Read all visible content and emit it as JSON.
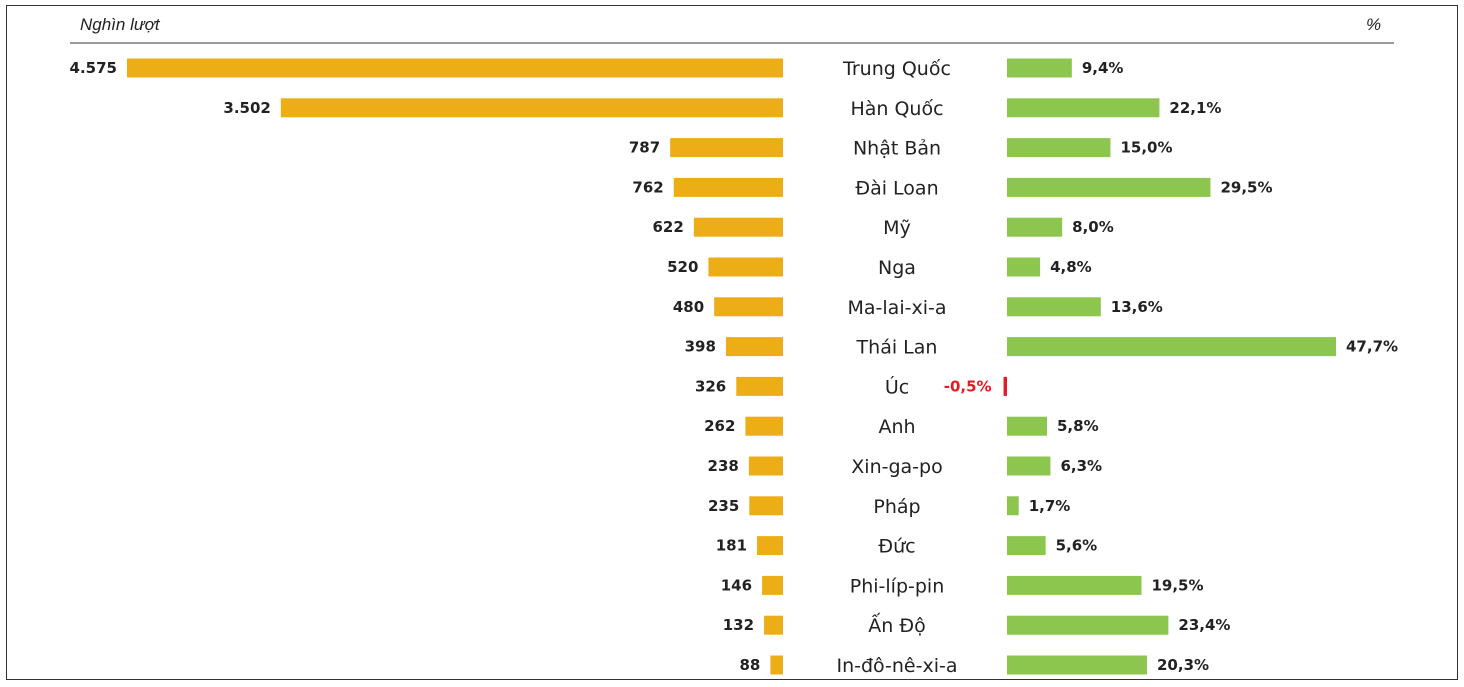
{
  "header": {
    "left_unit": "Nghìn lượt",
    "right_unit": "%"
  },
  "colors": {
    "left_bar": "#EDAD17",
    "right_bar": "#8CC64F",
    "negative": "#E31B23",
    "text": "#222222"
  },
  "chart_data": {
    "type": "bar",
    "categories": [
      "Trung Quốc",
      "Hàn Quốc",
      "Nhật Bản",
      "Đài Loan",
      "Mỹ",
      "Nga",
      "Ma-lai-xi-a",
      "Thái Lan",
      "Úc",
      "Anh",
      "Xin-ga-po",
      "Pháp",
      "Đức",
      "Phi-líp-pin",
      "Ấn Độ",
      "In-đô-nê-xi-a"
    ],
    "series": [
      {
        "unit": "Nghìn lượt",
        "values": [
          4575,
          3502,
          787,
          762,
          622,
          520,
          480,
          398,
          326,
          262,
          238,
          235,
          181,
          146,
          132,
          88
        ],
        "labels": [
          "4.575",
          "3.502",
          "787",
          "762",
          "622",
          "520",
          "480",
          "398",
          "326",
          "262",
          "238",
          "235",
          "181",
          "146",
          "132",
          "88"
        ]
      },
      {
        "unit": "%",
        "values": [
          9.4,
          22.1,
          15.0,
          29.5,
          8.0,
          4.8,
          13.6,
          47.7,
          -0.5,
          5.8,
          6.3,
          1.7,
          5.6,
          19.5,
          23.4,
          20.3
        ],
        "labels": [
          "9,4%",
          "22,1%",
          "15,0%",
          "29,5%",
          "8,0%",
          "4,8%",
          "13,6%",
          "47,7%",
          "-0,5%",
          "5,8%",
          "6,3%",
          "1,7%",
          "5,6%",
          "19,5%",
          "23,4%",
          "20,3%"
        ]
      }
    ]
  }
}
